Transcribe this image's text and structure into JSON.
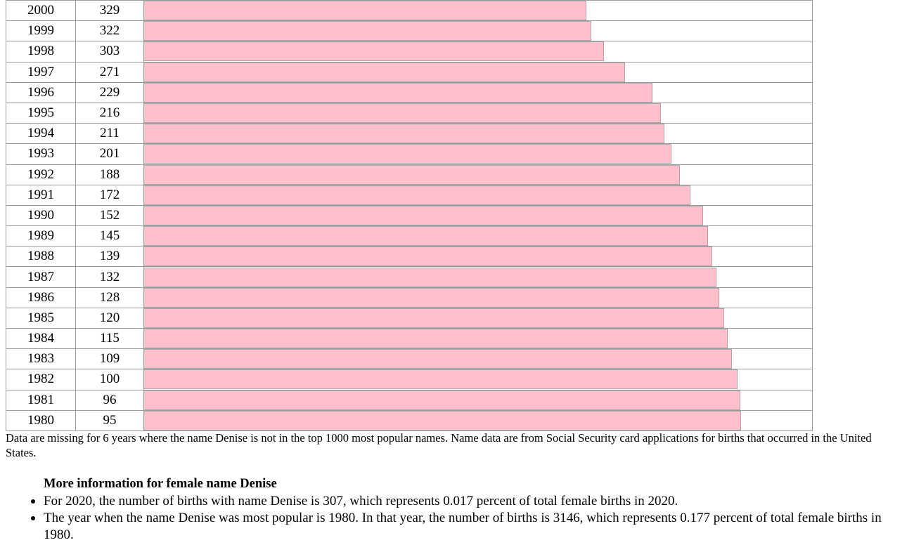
{
  "chart_data": {
    "type": "bar",
    "orientation": "horizontal",
    "bar_color": "#ffc0cb",
    "categories": [
      "2000",
      "1999",
      "1998",
      "1997",
      "1996",
      "1995",
      "1994",
      "1993",
      "1992",
      "1991",
      "1990",
      "1989",
      "1988",
      "1987",
      "1986",
      "1985",
      "1984",
      "1983",
      "1982",
      "1981",
      "1980"
    ],
    "values": [
      329,
      322,
      303,
      271,
      229,
      216,
      211,
      201,
      188,
      172,
      152,
      145,
      139,
      132,
      128,
      120,
      115,
      109,
      100,
      96,
      95
    ],
    "rank_labels": [
      "329",
      "322",
      "303",
      "271",
      "229",
      "216",
      "211",
      "201",
      "188",
      "172",
      "152",
      "145",
      "139",
      "132",
      "128",
      "120",
      "115",
      "109",
      "100",
      "96",
      "95"
    ]
  },
  "note": "Data are missing for 6 years where the name Denise is not in the top 1000 most popular names. Name data are from Social Security card applications for births that occurred in the United States.",
  "more_info": {
    "heading": "More information for female name Denise",
    "items": [
      "For 2020, the number of births with name Denise is 307, which represents 0.017 percent of total female births in 2020.",
      "The year when the name Denise was most popular is 1980. In that year, the number of births is 3146, which represents 0.177 percent of total female births in 1980."
    ]
  }
}
